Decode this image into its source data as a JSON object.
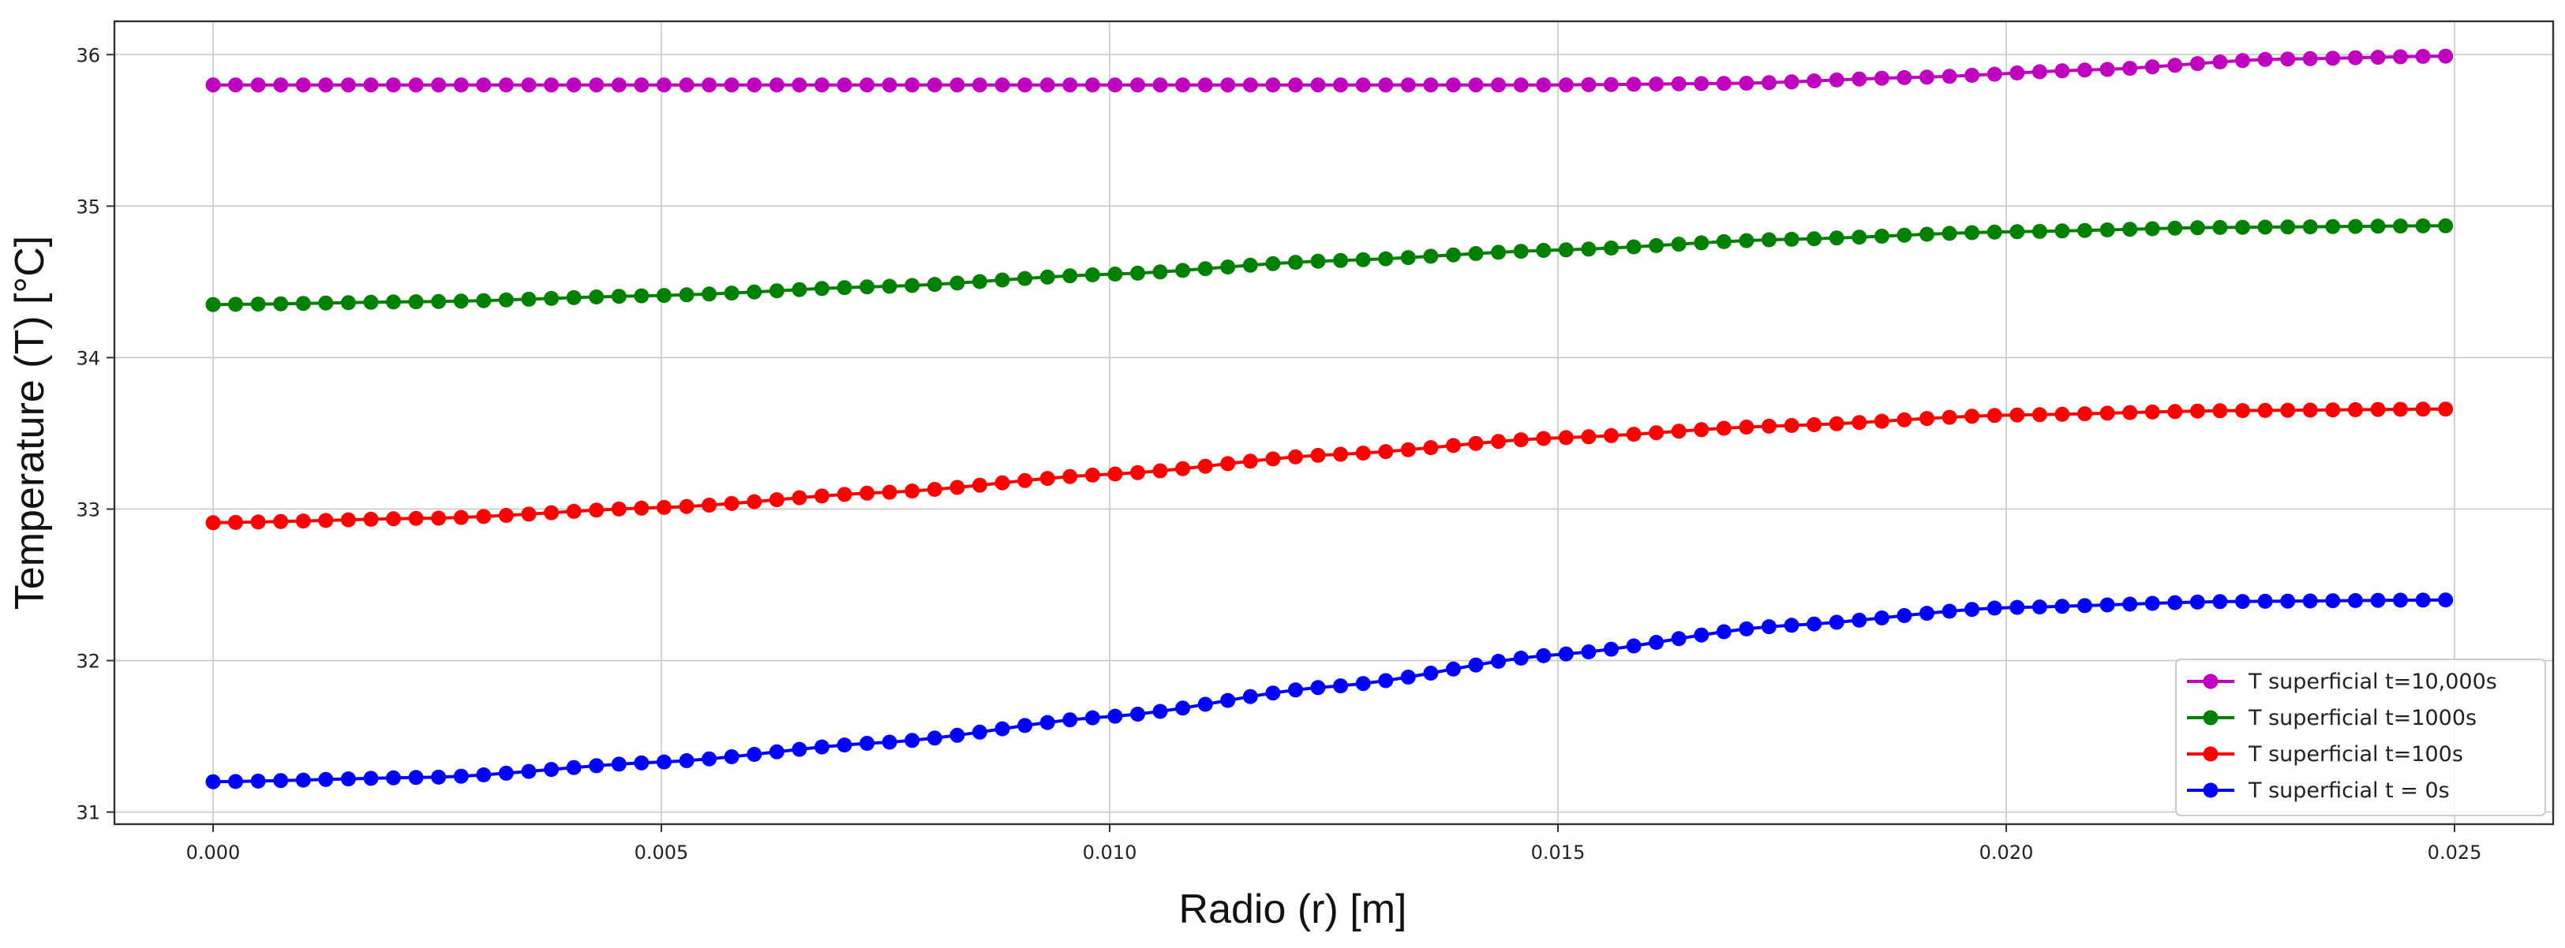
{
  "chart_data": {
    "type": "line",
    "title": "",
    "xlabel": "Radio (r) [m]",
    "ylabel": "Temperature (T) [°C]",
    "xlim": [
      -0.0011,
      0.0261
    ],
    "ylim": [
      30.92,
      36.22
    ],
    "xticks": [
      0.0,
      0.005,
      0.01,
      0.015,
      0.02,
      0.025
    ],
    "xtick_labels": [
      "0.000",
      "0.005",
      "0.010",
      "0.015",
      "0.020",
      "0.025"
    ],
    "yticks": [
      31,
      32,
      33,
      34,
      35,
      36
    ],
    "ytick_labels": [
      "31",
      "32",
      "33",
      "34",
      "35",
      "36"
    ],
    "grid": true,
    "legend_position": "lower-right",
    "x": {
      "start": 0.0,
      "stop": 0.0249,
      "count": 100
    },
    "series": [
      {
        "name": "T superficial t=10,000s",
        "color": "#bf00bf",
        "keypoints": [
          [
            0.0,
            35.8
          ],
          [
            0.015,
            35.8
          ],
          [
            0.017,
            35.81
          ],
          [
            0.019,
            35.85
          ],
          [
            0.021,
            35.9
          ],
          [
            0.023,
            35.97
          ],
          [
            0.0249,
            35.99
          ]
        ]
      },
      {
        "name": "T superficial t=1000s",
        "color": "#008000",
        "keypoints": [
          [
            0.0,
            34.35
          ],
          [
            0.0025,
            34.37
          ],
          [
            0.005,
            34.41
          ],
          [
            0.0075,
            34.47
          ],
          [
            0.01,
            34.55
          ],
          [
            0.0125,
            34.64
          ],
          [
            0.015,
            34.71
          ],
          [
            0.0175,
            34.78
          ],
          [
            0.02,
            34.83
          ],
          [
            0.0225,
            34.86
          ],
          [
            0.0249,
            34.87
          ]
        ]
      },
      {
        "name": "T superficial t=100s",
        "color": "#ff0000",
        "keypoints": [
          [
            0.0,
            32.91
          ],
          [
            0.0025,
            32.94
          ],
          [
            0.005,
            33.01
          ],
          [
            0.0075,
            33.11
          ],
          [
            0.01,
            33.23
          ],
          [
            0.0125,
            33.36
          ],
          [
            0.015,
            33.47
          ],
          [
            0.0175,
            33.55
          ],
          [
            0.02,
            33.62
          ],
          [
            0.0225,
            33.65
          ],
          [
            0.0249,
            33.66
          ]
        ]
      },
      {
        "name": "T superficial t = 0s",
        "color": "#0000ff",
        "keypoints": [
          [
            0.0,
            31.2
          ],
          [
            0.0025,
            31.23
          ],
          [
            0.005,
            31.33
          ],
          [
            0.0075,
            31.46
          ],
          [
            0.01,
            31.63
          ],
          [
            0.0125,
            31.83
          ],
          [
            0.015,
            32.04
          ],
          [
            0.0175,
            32.23
          ],
          [
            0.02,
            32.35
          ],
          [
            0.0225,
            32.39
          ],
          [
            0.0249,
            32.4
          ]
        ]
      }
    ]
  }
}
